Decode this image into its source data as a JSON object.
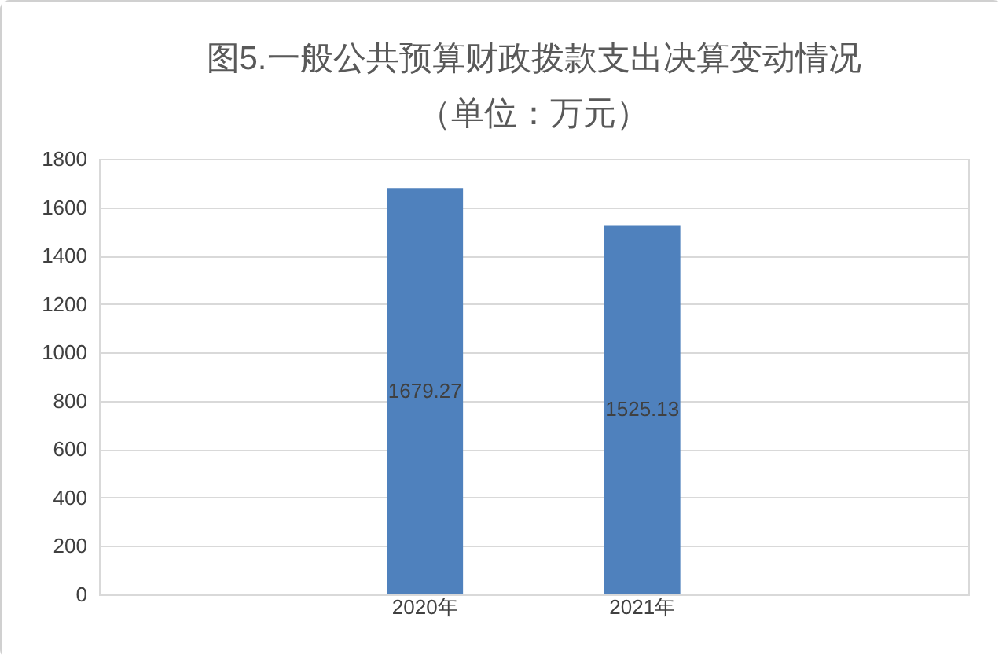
{
  "chart_data": {
    "type": "bar",
    "title": [
      "图5.一般公共预算财政拨款支出决算变动情况",
      "（单位：万元）"
    ],
    "categories": [
      null,
      "2020年",
      "2021年",
      null
    ],
    "values": [
      null,
      1679.27,
      1525.13,
      null
    ],
    "color": "#4f81bd",
    "ylim": [
      0,
      1800
    ],
    "yticks": [
      0,
      200,
      400,
      600,
      800,
      1000,
      1200,
      1400,
      1600,
      1800
    ],
    "grid": "y",
    "data_labels": true
  }
}
